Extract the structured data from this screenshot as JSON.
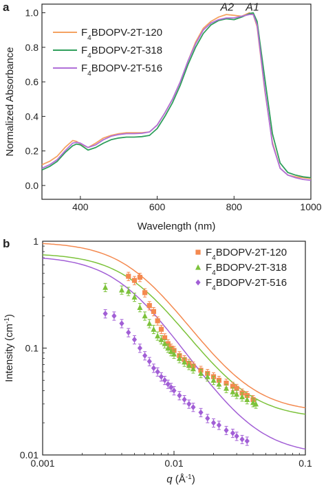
{
  "figure": {
    "panel_a_label": "a",
    "panel_b_label": "b"
  },
  "chart_data": [
    {
      "type": "line",
      "panel": "a",
      "xlabel": "Wavelength (nm)",
      "ylabel": "Normalized Absorbance",
      "xlim": [
        300,
        1000
      ],
      "ylim": [
        -0.08,
        1.05
      ],
      "xticks": [
        400,
        600,
        800,
        1000
      ],
      "yticks": [
        0.0,
        0.2,
        0.4,
        0.6,
        0.8,
        1.0
      ],
      "annotations": [
        {
          "text": "A2",
          "x": 782,
          "y": 1.005
        },
        {
          "text": "A1",
          "x": 848,
          "y": 1.005
        }
      ],
      "legend_position": "top-left",
      "series": [
        {
          "name": "F4BDOPV-2T-120",
          "name_base": "F",
          "name_sub": "4",
          "name_rest": "BDOPV-2T-120",
          "color": "#f4a261",
          "x": [
            300,
            320,
            340,
            360,
            380,
            390,
            400,
            420,
            440,
            460,
            480,
            500,
            520,
            540,
            560,
            580,
            600,
            620,
            640,
            660,
            680,
            700,
            720,
            740,
            760,
            780,
            800,
            820,
            840,
            850,
            860,
            880,
            900,
            920,
            940,
            960,
            980,
            1000
          ],
          "y": [
            0.12,
            0.14,
            0.17,
            0.22,
            0.26,
            0.255,
            0.24,
            0.22,
            0.245,
            0.275,
            0.29,
            0.3,
            0.305,
            0.305,
            0.305,
            0.31,
            0.35,
            0.42,
            0.5,
            0.6,
            0.72,
            0.83,
            0.91,
            0.95,
            0.975,
            0.99,
            0.985,
            0.98,
            1.0,
            0.99,
            0.92,
            0.55,
            0.25,
            0.1,
            0.06,
            0.05,
            0.045,
            0.04
          ]
        },
        {
          "name": "F4BDOPV-2T-318",
          "name_base": "F",
          "name_sub": "4",
          "name_rest": "BDOPV-2T-318",
          "color": "#2e9e5b",
          "x": [
            300,
            320,
            340,
            360,
            380,
            390,
            400,
            420,
            440,
            460,
            480,
            500,
            520,
            540,
            560,
            580,
            600,
            620,
            640,
            660,
            680,
            700,
            720,
            740,
            760,
            780,
            800,
            820,
            840,
            850,
            860,
            880,
            900,
            920,
            940,
            960,
            980,
            1000
          ],
          "y": [
            0.09,
            0.11,
            0.14,
            0.19,
            0.23,
            0.24,
            0.235,
            0.205,
            0.22,
            0.245,
            0.265,
            0.275,
            0.28,
            0.28,
            0.283,
            0.29,
            0.33,
            0.4,
            0.48,
            0.58,
            0.7,
            0.8,
            0.88,
            0.93,
            0.955,
            0.965,
            0.96,
            0.975,
            0.995,
            1.0,
            0.95,
            0.62,
            0.3,
            0.13,
            0.075,
            0.06,
            0.05,
            0.045
          ]
        },
        {
          "name": "F4BDOPV-2T-516",
          "name_base": "F",
          "name_sub": "4",
          "name_rest": "BDOPV-2T-516",
          "color": "#b06fd8",
          "x": [
            300,
            320,
            340,
            360,
            380,
            390,
            400,
            420,
            440,
            460,
            480,
            500,
            520,
            540,
            560,
            580,
            600,
            620,
            640,
            660,
            680,
            700,
            720,
            740,
            760,
            780,
            800,
            820,
            840,
            850,
            860,
            880,
            900,
            920,
            940,
            960,
            980,
            1000
          ],
          "y": [
            0.1,
            0.12,
            0.15,
            0.2,
            0.245,
            0.25,
            0.245,
            0.22,
            0.235,
            0.265,
            0.285,
            0.295,
            0.3,
            0.3,
            0.302,
            0.31,
            0.35,
            0.42,
            0.5,
            0.6,
            0.72,
            0.82,
            0.9,
            0.94,
            0.96,
            0.97,
            0.97,
            0.98,
            0.99,
            0.99,
            0.93,
            0.56,
            0.24,
            0.1,
            0.06,
            0.045,
            0.035,
            0.03
          ]
        }
      ]
    },
    {
      "type": "scatter",
      "panel": "b",
      "xlabel_var": "q",
      "xlabel_rest": " (Å",
      "xlabel_sup": "-1",
      "xlabel_close": ")",
      "ylabel_main": "Intensity (cm",
      "ylabel_sup": "-1",
      "ylabel_close": ")",
      "xscale": "log",
      "yscale": "log",
      "xlim": [
        0.001,
        0.1
      ],
      "ylim": [
        0.01,
        1
      ],
      "xticks": [
        0.001,
        0.01,
        0.1
      ],
      "xtick_labels": [
        "0.001",
        "0.01",
        "0.1"
      ],
      "yticks": [
        0.01,
        0.1,
        1
      ],
      "ytick_labels": [
        "0.01",
        "0.1",
        "1"
      ],
      "legend_position": "top-right",
      "series": [
        {
          "name": "F4BDOPV-2T-120",
          "name_base": "F",
          "name_sub": "4",
          "name_rest": "BDOPV-2T-120",
          "color": "#f4894f",
          "marker": "square",
          "fit": {
            "i0": 0.96,
            "xi": 190,
            "bg": 0.025
          },
          "points": [
            [
              0.0045,
              0.47
            ],
            [
              0.005,
              0.43
            ],
            [
              0.0055,
              0.46
            ],
            [
              0.006,
              0.33
            ],
            [
              0.0065,
              0.25
            ],
            [
              0.007,
              0.22
            ],
            [
              0.0075,
              0.18
            ],
            [
              0.008,
              0.15
            ],
            [
              0.0085,
              0.125
            ],
            [
              0.009,
              0.11
            ],
            [
              0.0095,
              0.1
            ],
            [
              0.01,
              0.095
            ],
            [
              0.011,
              0.085
            ],
            [
              0.012,
              0.078
            ],
            [
              0.013,
              0.072
            ],
            [
              0.014,
              0.068
            ],
            [
              0.016,
              0.062
            ],
            [
              0.018,
              0.058
            ],
            [
              0.02,
              0.054
            ],
            [
              0.022,
              0.05
            ],
            [
              0.025,
              0.047
            ],
            [
              0.028,
              0.044
            ],
            [
              0.03,
              0.042
            ],
            [
              0.033,
              0.038
            ],
            [
              0.036,
              0.036
            ],
            [
              0.04,
              0.033
            ]
          ]
        },
        {
          "name": "F4BDOPV-2T-318",
          "name_base": "F",
          "name_sub": "4",
          "name_rest": "BDOPV-2T-318",
          "color": "#7cc23a",
          "marker": "triangle",
          "fit": {
            "i0": 0.75,
            "xi": 190,
            "bg": 0.022
          },
          "points": [
            [
              0.003,
              0.37
            ],
            [
              0.004,
              0.35
            ],
            [
              0.0045,
              0.34
            ],
            [
              0.005,
              0.3
            ],
            [
              0.0055,
              0.24
            ],
            [
              0.006,
              0.2
            ],
            [
              0.0065,
              0.17
            ],
            [
              0.007,
              0.15
            ],
            [
              0.0075,
              0.13
            ],
            [
              0.008,
              0.12
            ],
            [
              0.0085,
              0.11
            ],
            [
              0.009,
              0.1
            ],
            [
              0.0095,
              0.093
            ],
            [
              0.01,
              0.088
            ],
            [
              0.011,
              0.08
            ],
            [
              0.012,
              0.074
            ],
            [
              0.013,
              0.069
            ],
            [
              0.014,
              0.064
            ],
            [
              0.016,
              0.058
            ],
            [
              0.018,
              0.054
            ],
            [
              0.02,
              0.05
            ],
            [
              0.022,
              0.046
            ],
            [
              0.025,
              0.042
            ],
            [
              0.028,
              0.039
            ],
            [
              0.03,
              0.037
            ],
            [
              0.033,
              0.035
            ],
            [
              0.036,
              0.033
            ],
            [
              0.04,
              0.031
            ],
            [
              0.042,
              0.03
            ]
          ]
        },
        {
          "name": "F4BDOPV-2T-516",
          "name_base": "F",
          "name_sub": "4",
          "name_rest": "BDOPV-2T-516",
          "color": "#a25fd6",
          "marker": "diamond",
          "fit": {
            "i0": 0.72,
            "xi": 230,
            "bg": 0.01
          },
          "points": [
            [
              0.003,
              0.21
            ],
            [
              0.0035,
              0.2
            ],
            [
              0.004,
              0.17
            ],
            [
              0.0045,
              0.14
            ],
            [
              0.005,
              0.12
            ],
            [
              0.0055,
              0.1
            ],
            [
              0.006,
              0.085
            ],
            [
              0.0065,
              0.075
            ],
            [
              0.007,
              0.065
            ],
            [
              0.0075,
              0.06
            ],
            [
              0.008,
              0.054
            ],
            [
              0.0085,
              0.05
            ],
            [
              0.009,
              0.046
            ],
            [
              0.0095,
              0.043
            ],
            [
              0.01,
              0.04
            ],
            [
              0.011,
              0.036
            ],
            [
              0.012,
              0.033
            ],
            [
              0.013,
              0.03
            ],
            [
              0.014,
              0.028
            ],
            [
              0.016,
              0.025
            ],
            [
              0.018,
              0.022
            ],
            [
              0.02,
              0.02
            ],
            [
              0.022,
              0.019
            ],
            [
              0.025,
              0.017
            ],
            [
              0.028,
              0.016
            ],
            [
              0.03,
              0.015
            ],
            [
              0.033,
              0.014
            ],
            [
              0.036,
              0.0135
            ]
          ]
        }
      ]
    }
  ]
}
